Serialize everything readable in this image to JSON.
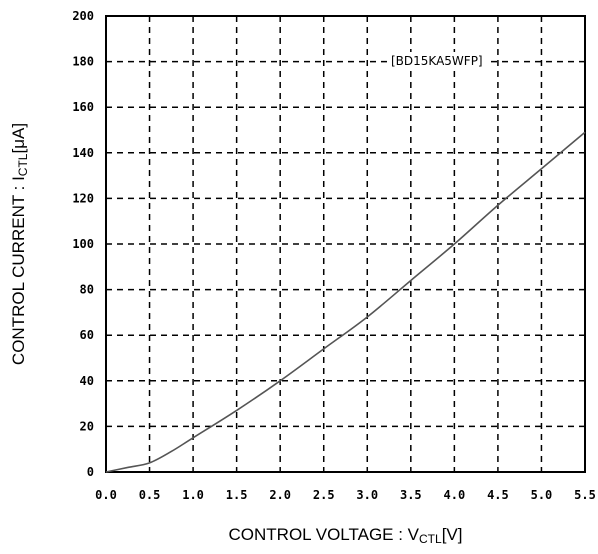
{
  "chart_data": {
    "type": "line",
    "title": "",
    "annotation": "[BD15KA5WFP]",
    "xlabel": {
      "main": "CONTROL VOLTAGE : V",
      "sub": "CTL",
      "unit": "[V]"
    },
    "ylabel": {
      "main": "CONTROL CURRENT : I",
      "sub": "CTL",
      "unit": "[μA]"
    },
    "xlim": [
      0,
      5.5
    ],
    "ylim": [
      0,
      200
    ],
    "x_ticks": [
      "0.0",
      "0.5",
      "1.0",
      "1.5",
      "2.0",
      "2.5",
      "3.0",
      "3.5",
      "4.0",
      "4.5",
      "5.0",
      "5.5"
    ],
    "y_ticks": [
      "0",
      "20",
      "40",
      "60",
      "80",
      "100",
      "120",
      "140",
      "160",
      "180",
      "200"
    ],
    "grid": true,
    "series": [
      {
        "name": "",
        "color": "#555555",
        "x": [
          0.0,
          0.25,
          0.5,
          0.75,
          1.0,
          1.5,
          2.0,
          2.5,
          3.0,
          3.5,
          4.0,
          4.5,
          5.0,
          5.5
        ],
        "y": [
          0,
          2,
          4,
          9,
          15,
          27,
          40,
          54,
          68,
          84,
          100,
          117,
          133,
          149
        ]
      }
    ]
  }
}
